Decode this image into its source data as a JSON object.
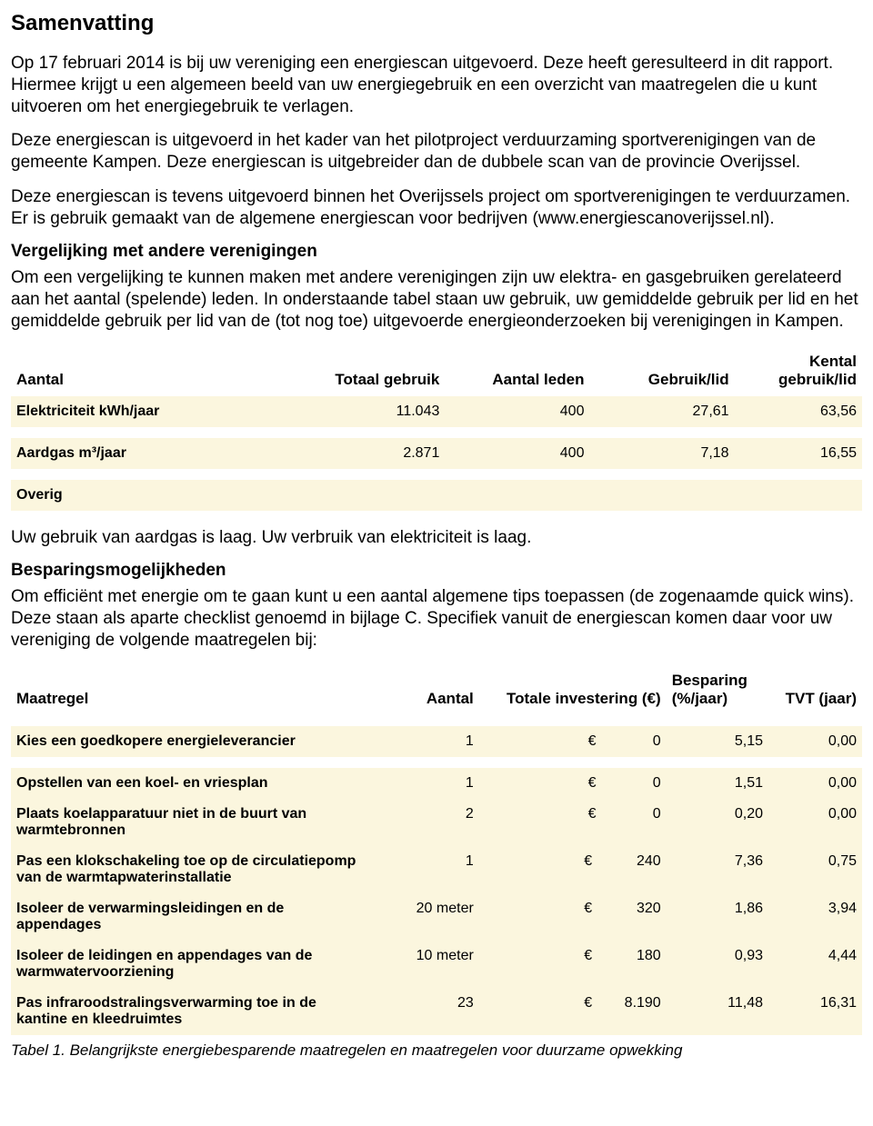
{
  "title": "Samenvatting",
  "paragraphs": {
    "p1": "Op 17 februari 2014 is bij uw vereniging een energiescan uitgevoerd. Deze heeft geresulteerd in dit rapport. Hiermee krijgt u een algemeen beeld van uw energiegebruik en een overzicht van maatregelen die u kunt uitvoeren om het energiegebruik te verlagen.",
    "p2": "Deze energiescan is uitgevoerd in het kader van het pilotproject verduurzaming sportverenigingen van de gemeente Kampen. Deze energiescan is uitgebreider dan de dubbele scan van de provincie Overijssel.",
    "p3": "Deze energiescan is tevens uitgevoerd binnen het Overijssels project om sportverenigingen te verduurzamen. Er is gebruik gemaakt van de algemene energiescan voor bedrijven (www.energiescanoverijssel.nl).",
    "h_vergelijking": "Vergelijking met andere verenigingen",
    "p4": "Om een vergelijking te kunnen maken met andere verenigingen zijn uw elektra- en gasgebruiken gerelateerd aan het aantal (spelende) leden. In onderstaande tabel staan uw gebruik, uw gemiddelde gebruik per lid en het gemiddelde gebruik per lid van de (tot nog toe) uitgevoerde energieonderzoeken bij verenigingen in Kampen.",
    "p5": "Uw gebruik van aardgas is laag. Uw verbruik van elektriciteit is laag.",
    "h_besparing": "Besparingsmogelijkheden",
    "p6": "Om efficiënt met energie om te gaan kunt u een aantal algemene tips toepassen (de zogenaamde quick wins). Deze staan als aparte checklist genoemd in bijlage C. Specifiek vanuit de energiescan komen daar voor uw vereniging de volgende maatregelen bij:",
    "caption": "Tabel 1. Belangrijkste energiebesparende maatregelen en maatregelen voor duurzame opwekking"
  },
  "table1": {
    "headers": [
      "Aantal",
      "Totaal gebruik",
      "Aantal leden",
      "Gebruik/lid",
      "Kental gebruik/lid"
    ],
    "colwidths": [
      "34%",
      "17%",
      "17%",
      "17%",
      "15%"
    ],
    "header_align": [
      "left",
      "right",
      "right",
      "right",
      "right"
    ],
    "rows": [
      {
        "label": "Elektriciteit kWh/jaar",
        "c1": "11.043",
        "c2": "400",
        "c3": "27,61",
        "c4": "63,56"
      },
      {
        "label": "Aardgas m³/jaar",
        "c1": "2.871",
        "c2": "400",
        "c3": "7,18",
        "c4": "16,55"
      },
      {
        "label": "Overig",
        "c1": "",
        "c2": "",
        "c3": "",
        "c4": ""
      }
    ]
  },
  "table2": {
    "headers": [
      "Maatregel",
      "Aantal",
      "Totale investering (€)",
      "Besparing (%/jaar)",
      "TVT (jaar)"
    ],
    "colwidths": [
      "42%",
      "13%",
      "22%",
      "12%",
      "11%"
    ],
    "header_align": [
      "left",
      "right",
      "right",
      "left",
      "right"
    ],
    "rows": [
      {
        "label": "Kies een goedkopere energieleverancier",
        "aantal": "1",
        "inv": "€              0",
        "besp": "5,15",
        "tvt": "0,00",
        "spacer_after": true
      },
      {
        "label": "Opstellen van een koel- en vriesplan",
        "aantal": "1",
        "inv": "€              0",
        "besp": "1,51",
        "tvt": "0,00"
      },
      {
        "label": "Plaats koelapparatuur niet in de buurt van warmtebronnen",
        "aantal": "2",
        "inv": "€              0",
        "besp": "0,20",
        "tvt": "0,00"
      },
      {
        "label": "Pas een klokschakeling toe op de circulatiepomp van de warmtapwaterinstallatie",
        "aantal": "1",
        "inv": "€           240",
        "besp": "7,36",
        "tvt": "0,75"
      },
      {
        "label": "Isoleer de verwarmingsleidingen en de appendages",
        "aantal": "20 meter",
        "inv": "€           320",
        "besp": "1,86",
        "tvt": "3,94"
      },
      {
        "label": "Isoleer de leidingen en appendages van de warmwatervoorziening",
        "aantal": "10 meter",
        "inv": "€           180",
        "besp": "0,93",
        "tvt": "4,44"
      },
      {
        "label": "Pas infraroodstralingsverwarming toe in de kantine en kleedruimtes",
        "aantal": "23",
        "inv": "€        8.190",
        "besp": "11,48",
        "tvt": "16,31"
      }
    ]
  }
}
